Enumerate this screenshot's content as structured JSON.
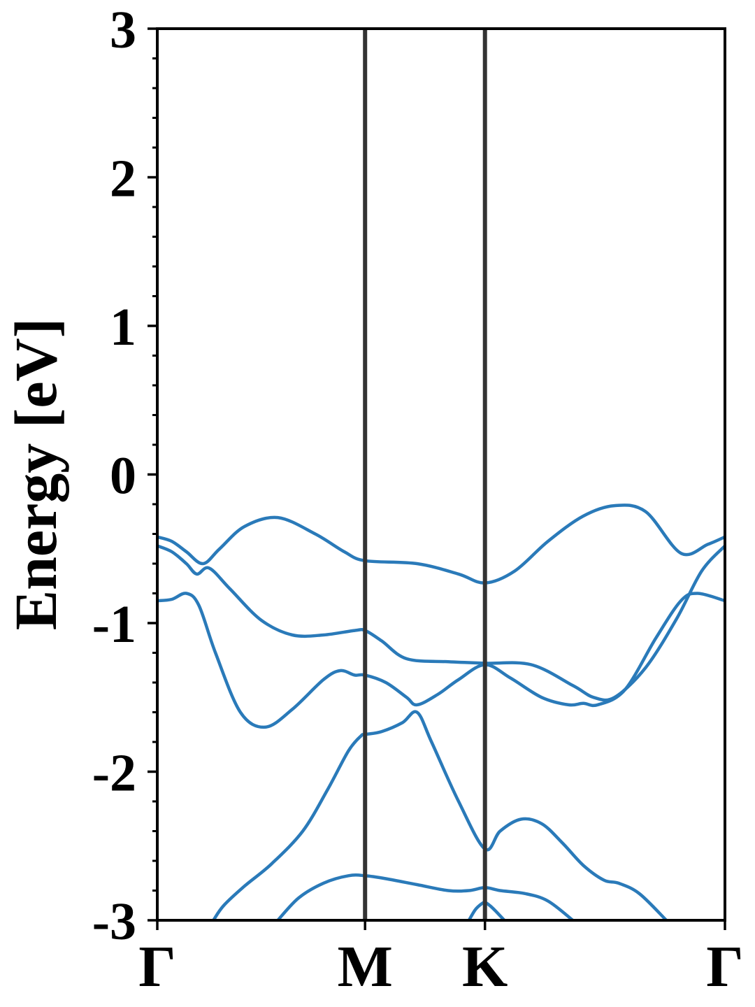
{
  "chart_data": {
    "type": "line",
    "title": "",
    "xlabel": "",
    "ylabel": "Energy [eV]",
    "ylim": [
      -3,
      3
    ],
    "xlim": [
      0,
      2.732
    ],
    "yticks": [
      {
        "value": 3,
        "label": "3"
      },
      {
        "value": 2,
        "label": "2"
      },
      {
        "value": 1,
        "label": "1"
      },
      {
        "value": 0,
        "label": "0"
      },
      {
        "value": -1,
        "label": "-1"
      },
      {
        "value": -2,
        "label": "-2"
      },
      {
        "value": -3,
        "label": "-3"
      }
    ],
    "yminor_step": 0.2,
    "high_symmetry_points": [
      {
        "label": "Γ",
        "x": 0
      },
      {
        "label": "M",
        "x": 1.0
      },
      {
        "label": "K",
        "x": 1.577
      },
      {
        "label": "Γ",
        "x": 2.732
      }
    ],
    "vertical_lines_at": [
      1.0,
      1.577
    ],
    "grid": false,
    "line_color": "#2a7ab9",
    "vline_color": "#333333",
    "series": [
      {
        "x": [
          0,
          0.07,
          0.14,
          0.22,
          0.3,
          0.42,
          0.58,
          0.76,
          0.9,
          1.0,
          1.25,
          1.45,
          1.577,
          1.72,
          1.88,
          2.05,
          2.2,
          2.35,
          2.52,
          2.65,
          2.732
        ],
        "y": [
          -0.42,
          -0.45,
          -0.52,
          -0.6,
          -0.5,
          -0.35,
          -0.29,
          -0.4,
          -0.52,
          -0.58,
          -0.6,
          -0.67,
          -0.73,
          -0.65,
          -0.45,
          -0.28,
          -0.21,
          -0.25,
          -0.53,
          -0.47,
          -0.42
        ]
      },
      {
        "x": [
          0,
          0.07,
          0.14,
          0.19,
          0.25,
          0.35,
          0.5,
          0.65,
          0.8,
          0.95,
          1.0,
          1.08,
          1.2,
          1.4,
          1.577,
          1.8,
          2.0,
          2.1,
          2.2,
          2.35,
          2.5,
          2.62,
          2.732
        ],
        "y": [
          -0.48,
          -0.52,
          -0.6,
          -0.67,
          -0.63,
          -0.77,
          -0.98,
          -1.08,
          -1.08,
          -1.05,
          -1.05,
          -1.12,
          -1.24,
          -1.26,
          -1.27,
          -1.28,
          -1.42,
          -1.5,
          -1.5,
          -1.3,
          -0.97,
          -0.65,
          -0.48
        ]
      },
      {
        "x": [
          0,
          0.07,
          0.14,
          0.2,
          0.28,
          0.4,
          0.52,
          0.65,
          0.8,
          0.88,
          0.95,
          1.0,
          1.1,
          1.2,
          1.25,
          1.35,
          1.45,
          1.577,
          1.7,
          1.85,
          1.98,
          2.05,
          2.12,
          2.25,
          2.4,
          2.52,
          2.6,
          2.732
        ],
        "y": [
          -0.85,
          -0.84,
          -0.8,
          -0.88,
          -1.2,
          -1.6,
          -1.7,
          -1.58,
          -1.38,
          -1.32,
          -1.35,
          -1.35,
          -1.4,
          -1.5,
          -1.55,
          -1.48,
          -1.38,
          -1.28,
          -1.37,
          -1.5,
          -1.55,
          -1.54,
          -1.55,
          -1.45,
          -1.1,
          -0.85,
          -0.8,
          -0.85
        ]
      },
      {
        "x": [
          0.27,
          0.32,
          0.42,
          0.55,
          0.7,
          0.82,
          0.92,
          0.98,
          1.0,
          1.08,
          1.18,
          1.25,
          1.32,
          1.45,
          1.577,
          1.65,
          1.75,
          1.85,
          1.95,
          2.05,
          2.15,
          2.22,
          2.32,
          2.45
        ],
        "y": [
          -3.0,
          -2.9,
          -2.77,
          -2.62,
          -2.4,
          -2.12,
          -1.86,
          -1.76,
          -1.75,
          -1.73,
          -1.67,
          -1.6,
          -1.8,
          -2.2,
          -2.52,
          -2.4,
          -2.32,
          -2.35,
          -2.48,
          -2.63,
          -2.73,
          -2.75,
          -2.82,
          -3.0
        ]
      },
      {
        "x": [
          0.58,
          0.68,
          0.8,
          0.92,
          1.0,
          1.1,
          1.25,
          1.4,
          1.5,
          1.577,
          1.65,
          1.77,
          1.88,
          2.0
        ],
        "y": [
          -3.0,
          -2.85,
          -2.75,
          -2.7,
          -2.7,
          -2.72,
          -2.76,
          -2.8,
          -2.8,
          -2.78,
          -2.8,
          -2.82,
          -2.87,
          -3.0
        ]
      },
      {
        "x": [
          1.5,
          1.53,
          1.56,
          1.577,
          1.6,
          1.63,
          1.67
        ],
        "y": [
          -3.0,
          -2.93,
          -2.89,
          -2.88,
          -2.9,
          -2.94,
          -3.0
        ]
      }
    ]
  }
}
